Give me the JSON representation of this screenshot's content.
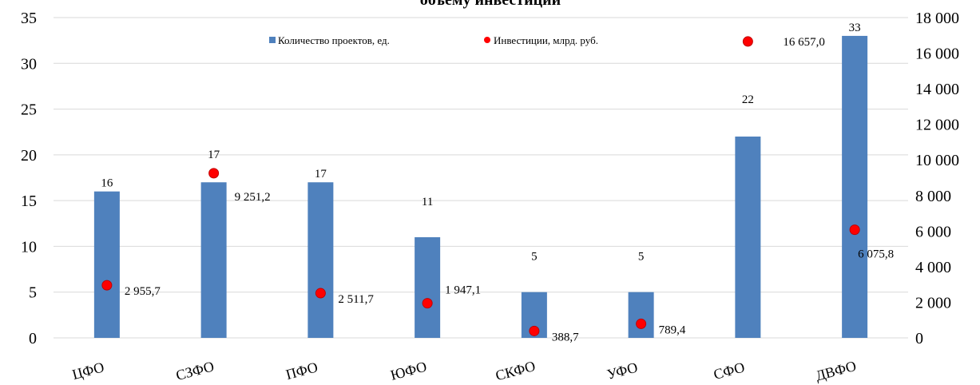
{
  "chart_data": {
    "type": "bar",
    "title": "объему инвестиций",
    "categories": [
      "ЦФО",
      "СЗФО",
      "ПФО",
      "ЮФО",
      "СКФО",
      "УФО",
      "СФО",
      "ДВФО"
    ],
    "series": [
      {
        "name": "Количество проектов, ед.",
        "type": "bar",
        "axis": "left",
        "color": "#4f81bd",
        "values": [
          16,
          17,
          17,
          11,
          5,
          5,
          22,
          33
        ],
        "labels": [
          "16",
          "17",
          "17",
          "11",
          "5",
          "5",
          "22",
          "33"
        ]
      },
      {
        "name": "Инвестиции, млрд. руб.",
        "type": "scatter",
        "axis": "right",
        "color": "#ff0000",
        "values": [
          2955.7,
          9251.2,
          2511.7,
          1947.1,
          388.7,
          789.4,
          16657.0,
          6075.8
        ],
        "labels": [
          "2 955,7",
          "9 251,2",
          "2 511,7",
          "1 947,1",
          "388,7",
          "789,4",
          "16 657,0",
          "6 075,8"
        ]
      }
    ],
    "y_left": {
      "min": 0,
      "max": 35,
      "ticks": [
        "0",
        "5",
        "10",
        "15",
        "20",
        "25",
        "30",
        "35"
      ]
    },
    "y_right": {
      "min": 0,
      "max": 18000,
      "ticks": [
        "0",
        "2 000",
        "4 000",
        "6 000",
        "8 000",
        "10 000",
        "12 000",
        "14 000",
        "16 000",
        "18 000"
      ]
    },
    "grid": true,
    "legend": "top"
  }
}
